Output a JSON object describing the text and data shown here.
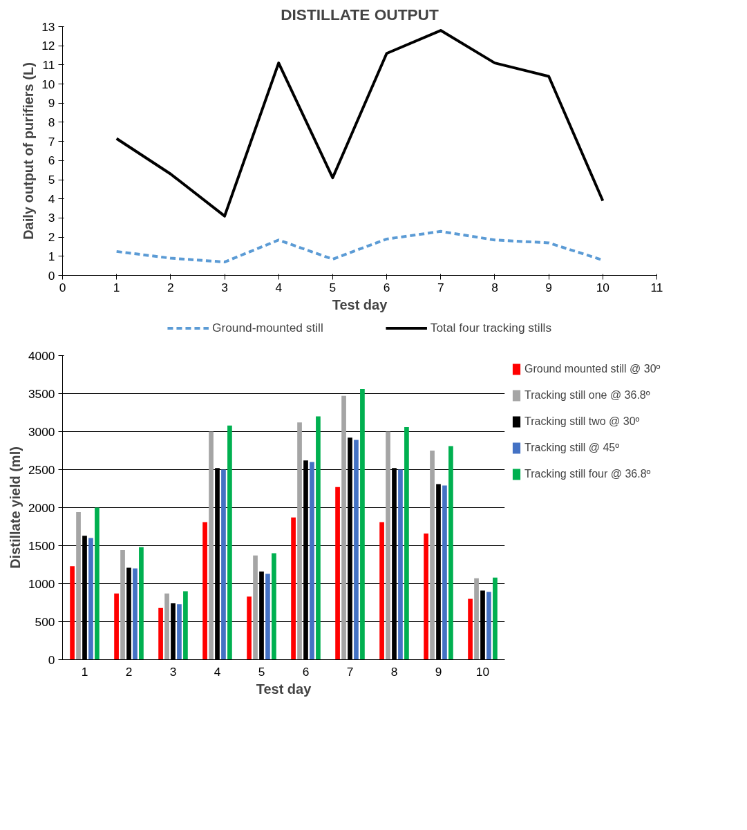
{
  "chart_data": [
    {
      "type": "line",
      "title": "DISTILLATE OUTPUT",
      "xlabel": "Test day",
      "ylabel": "Daily output of purifiers (L)",
      "x": [
        1,
        2,
        3,
        4,
        5,
        6,
        7,
        8,
        9,
        10
      ],
      "xlim": [
        0,
        11
      ],
      "xticks": [
        0,
        1,
        2,
        3,
        4,
        5,
        6,
        7,
        8,
        9,
        10,
        11
      ],
      "ylim": [
        0,
        13
      ],
      "yticks": [
        0,
        1,
        2,
        3,
        4,
        5,
        6,
        7,
        8,
        9,
        10,
        11,
        12,
        13
      ],
      "grid": false,
      "legend": "bottom",
      "marker": "none",
      "series": [
        {
          "name": "Ground-mounted still",
          "color": "#5b9bd5",
          "line_style": "dashed",
          "values": [
            1.25,
            0.9,
            0.7,
            1.85,
            0.85,
            1.9,
            2.3,
            1.85,
            1.7,
            0.8
          ]
        },
        {
          "name": "Total four tracking stills",
          "color": "#000000",
          "line_style": "solid",
          "values": [
            7.15,
            5.3,
            3.1,
            11.1,
            5.1,
            11.6,
            12.8,
            11.1,
            10.4,
            3.9
          ]
        }
      ]
    },
    {
      "type": "bar",
      "xlabel": "Test day",
      "ylabel": "Distillate yield (ml)",
      "categories": [
        "1",
        "2",
        "3",
        "4",
        "5",
        "6",
        "7",
        "8",
        "9",
        "10"
      ],
      "ylim": [
        0,
        4000
      ],
      "yticks": [
        0,
        500,
        1000,
        1500,
        2000,
        2500,
        3000,
        3500,
        4000
      ],
      "grid": "y",
      "legend": "right",
      "series": [
        {
          "name": "Ground mounted still @ 30º",
          "color": "#ff0000",
          "values": [
            1230,
            870,
            680,
            1810,
            830,
            1870,
            2270,
            1810,
            1660,
            800
          ]
        },
        {
          "name": "Tracking still one @ 36.8º",
          "color": "#a5a5a5",
          "values": [
            1940,
            1440,
            870,
            3000,
            1370,
            3120,
            3470,
            3000,
            2750,
            1070
          ]
        },
        {
          "name": "Tracking still two @ 30º",
          "color": "#000000",
          "values": [
            1630,
            1210,
            740,
            2520,
            1160,
            2620,
            2920,
            2520,
            2310,
            910
          ]
        },
        {
          "name": "Tracking still @ 45º",
          "color": "#4472c4",
          "values": [
            1600,
            1200,
            730,
            2500,
            1130,
            2600,
            2890,
            2500,
            2290,
            890
          ]
        },
        {
          "name": "Tracking still four @ 36.8º",
          "color": "#00b050",
          "values": [
            2000,
            1480,
            900,
            3080,
            1400,
            3200,
            3560,
            3060,
            2810,
            1080
          ]
        }
      ]
    }
  ]
}
